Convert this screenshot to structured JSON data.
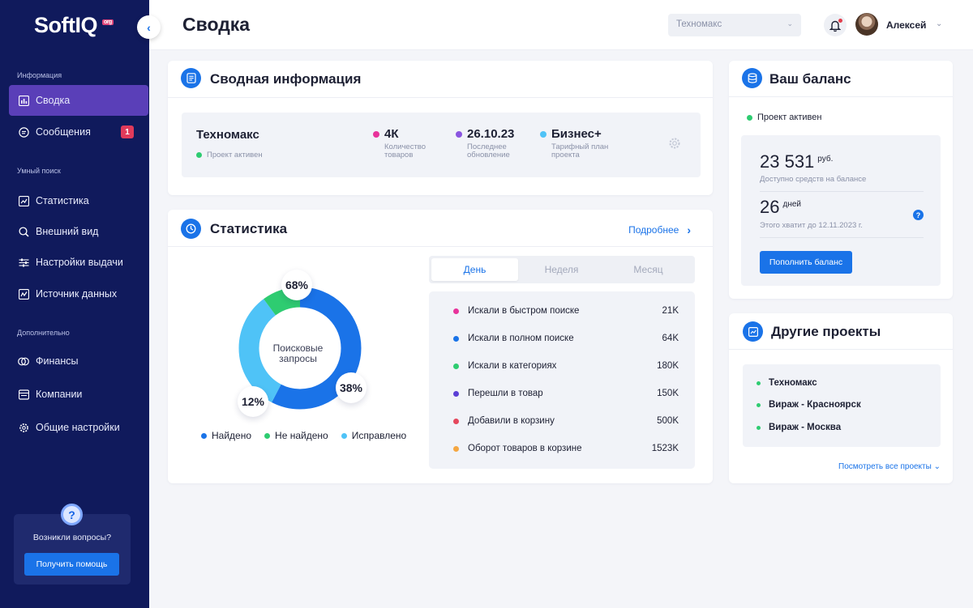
{
  "logo": {
    "text": "SoftIQ",
    "badge": "org"
  },
  "sidebar": {
    "sections": [
      "Информация",
      "Умный поиск",
      "Дополнительно"
    ],
    "items": [
      {
        "label": "Сводка",
        "icon": "bar-chart-icon",
        "active": true
      },
      {
        "label": "Сообщения",
        "icon": "chat-icon",
        "badge": "1"
      },
      {
        "label": "Статистика",
        "icon": "trend-icon"
      },
      {
        "label": "Внешний вид",
        "icon": "search-icon"
      },
      {
        "label": "Настройки выдачи",
        "icon": "sliders-icon"
      },
      {
        "label": "Источник данных",
        "icon": "data-source-icon"
      },
      {
        "label": "Финансы",
        "icon": "coins-icon"
      },
      {
        "label": "Компании",
        "icon": "building-icon"
      },
      {
        "label": "Общие настройки",
        "icon": "gear-icon"
      }
    ],
    "help": {
      "text": "Возникли вопросы?",
      "button": "Получить помощь"
    }
  },
  "header": {
    "title": "Сводка",
    "project_select": "Техномакс",
    "user_name": "Алексей"
  },
  "summary": {
    "title": "Сводная информация",
    "project_name": "Техномакс",
    "status": "Проект активен",
    "metrics": [
      {
        "value": "4К",
        "label": "Количество товаров",
        "color": "#e8339b"
      },
      {
        "value": "26.10.23",
        "label": "Последнее обновление",
        "color": "#8a55e0"
      },
      {
        "value": "Бизнес+",
        "label": "Тарифный план проекта",
        "color": "#4fc3f7"
      }
    ]
  },
  "stats": {
    "title": "Статистика",
    "more_link": "Подробнее",
    "donut_center": "Поисковые запросы",
    "tabs": [
      "День",
      "Неделя",
      "Месяц"
    ],
    "active_tab": "День",
    "rows": [
      {
        "label": "Искали в быстром поиске",
        "value": "21K",
        "color": "#e8339b"
      },
      {
        "label": "Искали в полном поиске",
        "value": "64K",
        "color": "#1a73e8"
      },
      {
        "label": "Искали в категориях",
        "value": "180K",
        "color": "#2ecc71"
      },
      {
        "label": "Перешли в товар",
        "value": "150K",
        "color": "#5b3fd6"
      },
      {
        "label": "Добавили в корзину",
        "value": "500K",
        "color": "#e5485d"
      },
      {
        "label": "Оборот товаров в корзине",
        "value": "1523K",
        "color": "#f5a742"
      }
    ]
  },
  "chart_data": {
    "type": "pie",
    "title": "Поисковые запросы",
    "series": [
      {
        "name": "Найдено",
        "value": 68,
        "label": "68%",
        "color": "#1a73e8"
      },
      {
        "name": "Не найдено",
        "value": 12,
        "label": "12%",
        "color": "#2ecc71"
      },
      {
        "name": "Исправлено",
        "value": 38,
        "label": "38%",
        "color": "#4fc3f7"
      }
    ]
  },
  "balance": {
    "title": "Ваш баланс",
    "status": "Проект активен",
    "amount": "23 531",
    "amount_unit": "руб.",
    "amount_label": "Доступно средств на балансе",
    "days": "26",
    "days_unit": "дней",
    "days_label": "Этого хватит до 12.11.2023 г.",
    "button": "Пополнить баланс"
  },
  "other_projects": {
    "title": "Другие проекты",
    "items": [
      "Техномакс",
      "Вираж - Красноярск",
      "Вираж - Москва"
    ],
    "view_all": "Посмотреть все проекты"
  }
}
